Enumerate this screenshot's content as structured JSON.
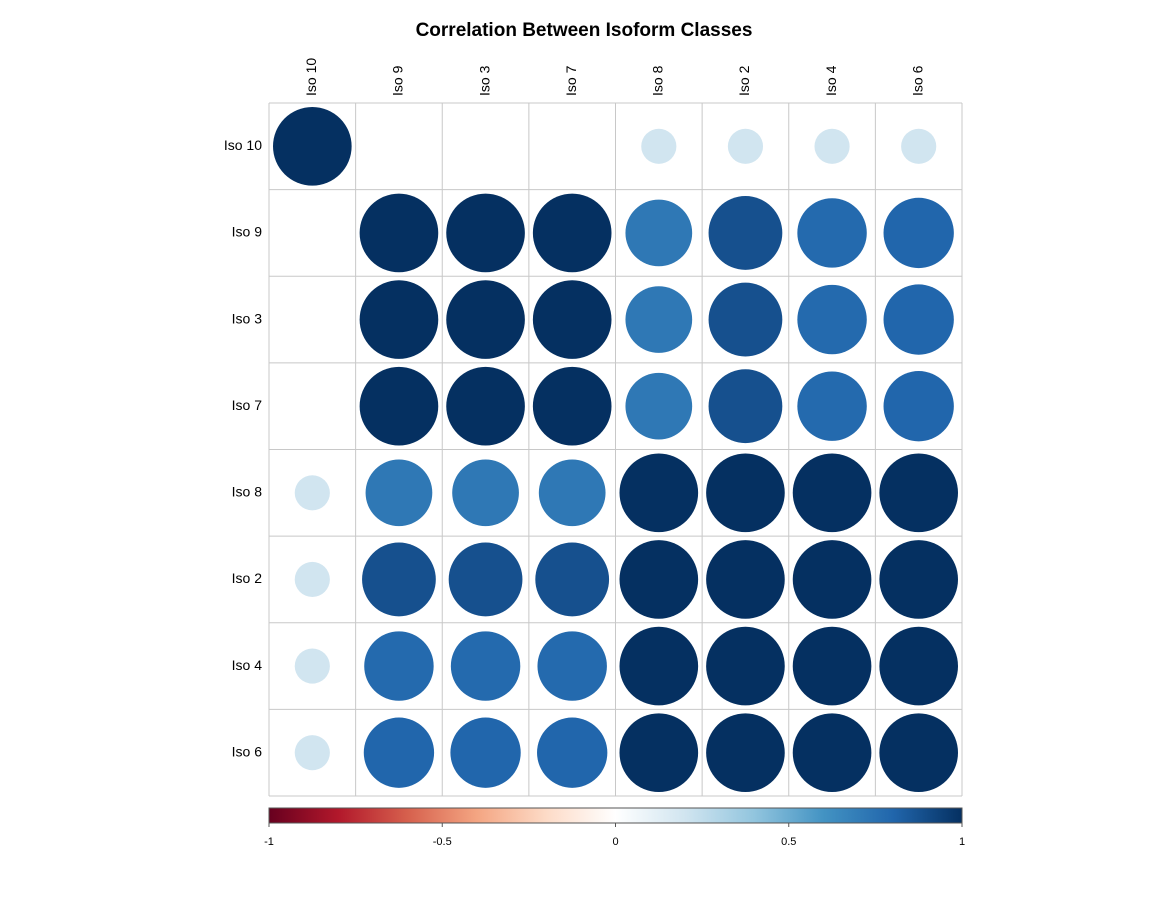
{
  "chart_data": {
    "type": "heatmap",
    "style": "correlation-circles",
    "title": "Correlation Between Isoform Classes",
    "variables": [
      "Iso 10",
      "Iso 9",
      "Iso 3",
      "Iso 7",
      "Iso 8",
      "Iso 2",
      "Iso 4",
      "Iso 6"
    ],
    "matrix": [
      [
        1.0,
        0.0,
        0.0,
        0.0,
        0.2,
        0.2,
        0.2,
        0.2
      ],
      [
        0.0,
        1.0,
        1.0,
        1.0,
        0.72,
        0.88,
        0.78,
        0.8
      ],
      [
        0.0,
        1.0,
        1.0,
        1.0,
        0.72,
        0.88,
        0.78,
        0.8
      ],
      [
        0.0,
        1.0,
        1.0,
        1.0,
        0.72,
        0.88,
        0.78,
        0.8
      ],
      [
        0.2,
        0.72,
        0.72,
        0.72,
        1.0,
        1.0,
        1.0,
        1.0
      ],
      [
        0.2,
        0.88,
        0.88,
        0.88,
        1.0,
        1.0,
        1.0,
        1.0
      ],
      [
        0.2,
        0.78,
        0.78,
        0.78,
        1.0,
        1.0,
        1.0,
        1.0
      ],
      [
        0.2,
        0.8,
        0.8,
        0.8,
        1.0,
        1.0,
        1.0,
        1.0
      ]
    ],
    "colorbar": {
      "range": [
        -1,
        1
      ],
      "tick_values": [
        -1,
        -0.5,
        0,
        0.5,
        1
      ],
      "tick_labels": [
        "-1",
        "-0.5",
        "0",
        "0.5",
        "1"
      ],
      "position": "bottom"
    },
    "palette": [
      "#67001F",
      "#B2182B",
      "#D6604D",
      "#F4A582",
      "#FDDBC7",
      "#FFFFFF",
      "#D1E5F0",
      "#92C5DE",
      "#4393C3",
      "#2166AC",
      "#053061"
    ],
    "grid": true
  }
}
